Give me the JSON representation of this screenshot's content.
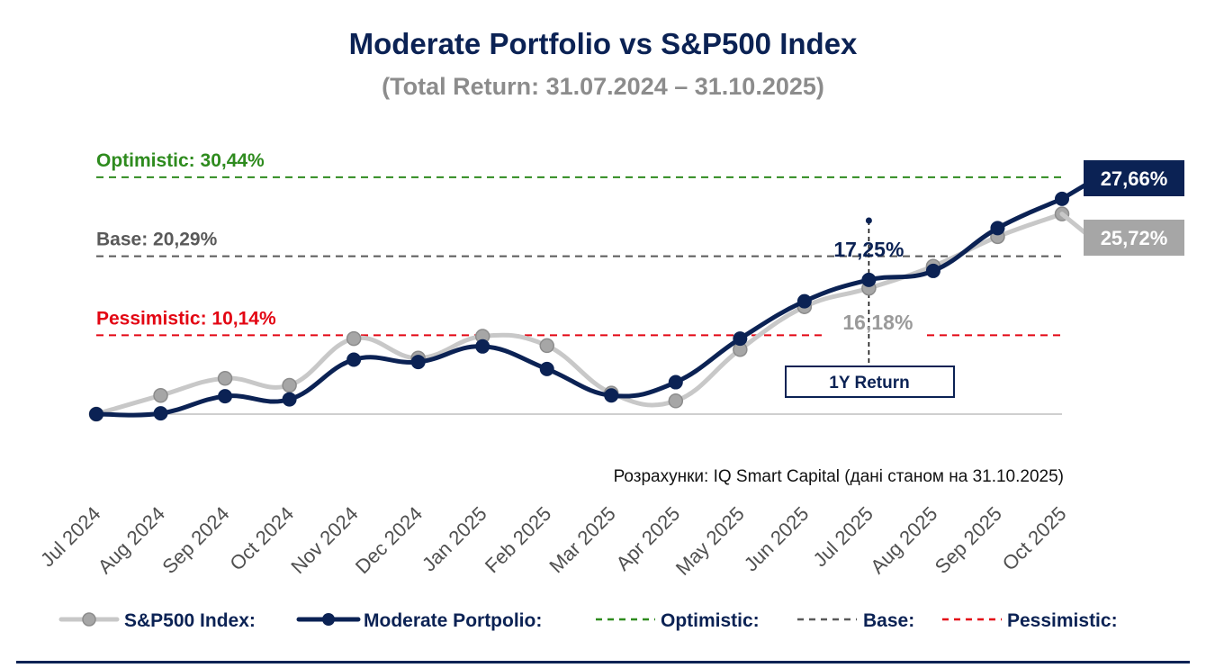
{
  "chart_data": {
    "type": "line",
    "title": "Moderate Portfolio vs S&P500 Index",
    "subtitle": "(Total Return: 31.07.2024 – 31.10.2025)",
    "xlabel": "",
    "ylabel": "",
    "ylim": [
      0,
      31
    ],
    "categories": [
      "Jul 2024",
      "Aug 2024",
      "Sep 2024",
      "Oct 2024",
      "Nov 2024",
      "Dec 2024",
      "Jan 2025",
      "Feb 2025",
      "Mar 2025",
      "Apr 2025",
      "May 2025",
      "Jun 2025",
      "Jul 2025",
      "Aug 2025",
      "Sep 2025",
      "Oct 2025"
    ],
    "series": [
      {
        "name": "S&P500 Index:",
        "color": "#c8c8c8",
        "marker": "#a6a6a6",
        "values": [
          0,
          2.4,
          4.6,
          3.7,
          9.7,
          7.2,
          10.0,
          8.8,
          2.7,
          1.7,
          8.3,
          13.8,
          16.18,
          19.0,
          22.8,
          25.72
        ]
      },
      {
        "name": "Moderate Portpolio:",
        "color": "#0b2254",
        "marker": "#0b2254",
        "values": [
          0,
          0.1,
          2.3,
          1.9,
          7.0,
          6.7,
          8.7,
          5.8,
          2.4,
          4.1,
          9.7,
          14.5,
          17.25,
          18.4,
          23.9,
          27.66
        ]
      }
    ],
    "reference_lines": [
      {
        "name": "Optimistic:",
        "label": "Optimistic: 30,44%",
        "value": 30.44,
        "color": "#2e8b1e"
      },
      {
        "name": "Base:",
        "label": "Base: 20,29%",
        "value": 20.29,
        "color": "#595959"
      },
      {
        "name": "Pessimistic:",
        "label": "Pessimistic: 10,14%",
        "value": 10.14,
        "color": "#e30613"
      }
    ],
    "end_labels": {
      "portfolio": "27,66%",
      "index": "25,72%"
    },
    "one_year_marker": {
      "category": "Jul 2025",
      "label": "1Y Return",
      "portfolio": "17,25%",
      "index": "16,18%"
    },
    "source": "Розрахунки: IQ Smart Capital (дані станом на 31.10.2025)"
  }
}
